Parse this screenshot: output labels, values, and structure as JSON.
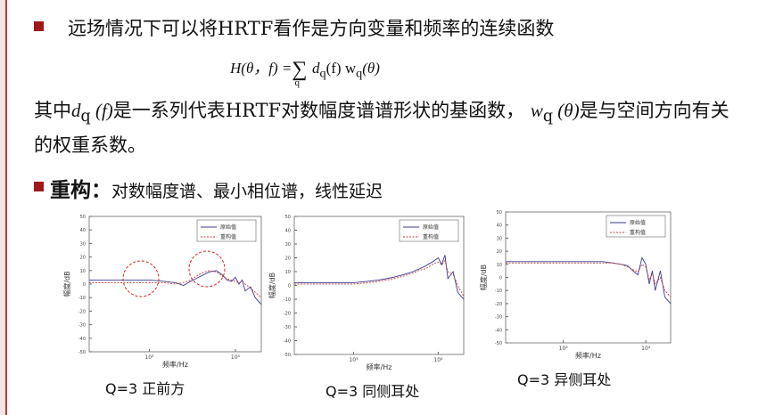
{
  "bullet1": "远场情况下可以将HRTF看作是方向变量和频率的连续函数",
  "formula": {
    "lhs": "H(θ，f) =",
    "sum": "∑",
    "sum_index": "q",
    "d": "d",
    "d_sub": "q",
    "d_arg": "(f)",
    "w": "w",
    "w_sub": "q",
    "w_arg": "(θ)"
  },
  "paragraph": {
    "p1": "其中",
    "d": "d",
    "d_sub": "q",
    "d_arg": " (f)",
    "p2": "是一系列代表HRTF对数幅度谱谱形状的基函数，",
    "w": "w",
    "w_sub": "q",
    "w_arg": " (θ)",
    "p3": "是与空间方向有关的权重系数。"
  },
  "heading": {
    "label": "重构：",
    "text": "对数幅度谱、最小相位谱，线性延迟"
  },
  "charts": [
    {
      "type": "line",
      "caption": "Q=3  正前方",
      "xlabel": "频率/Hz",
      "ylabel": "幅度/dB",
      "log_x": true,
      "x": [
        200,
        500,
        1000,
        1500,
        2000,
        2500,
        3000,
        4000,
        5000,
        6000,
        7000,
        8000,
        9000,
        10000,
        11000,
        12000,
        13000,
        15000,
        17000,
        20000
      ],
      "xlim": [
        200,
        20000
      ],
      "xticks": [
        {
          "value": 1000,
          "label": "10³"
        },
        {
          "value": 10000,
          "label": "10⁴"
        }
      ],
      "ylim": [
        -50,
        50
      ],
      "yticks": [
        -50,
        -40,
        -30,
        -20,
        -10,
        0,
        10,
        20,
        30,
        40,
        50
      ],
      "series": [
        {
          "name": "原始值",
          "color": "#3a3a8c",
          "values": [
            3,
            3,
            3,
            2,
            1,
            -1,
            2,
            6,
            9,
            10,
            7,
            3,
            2,
            5,
            0,
            3,
            -5,
            -2,
            -10,
            -15
          ]
        },
        {
          "name": "重构值",
          "color": "#c04040",
          "values": [
            1,
            1,
            1,
            1,
            0,
            1,
            3,
            8,
            10,
            9,
            6,
            4,
            3,
            2,
            1,
            2,
            0,
            -3,
            -6,
            -10
          ]
        }
      ]
    },
    {
      "type": "line",
      "caption": "Q=3 同侧耳处",
      "xlabel": "频率/Hz",
      "ylabel": "幅度/dB",
      "log_x": true,
      "x": [
        200,
        500,
        1000,
        1500,
        2000,
        2500,
        3000,
        4000,
        5000,
        6000,
        7000,
        8000,
        9000,
        10000,
        11000,
        12000,
        13000,
        15000,
        17000,
        20000
      ],
      "xlim": [
        200,
        20000
      ],
      "xticks": [
        {
          "value": 1000,
          "label": "10³"
        },
        {
          "value": 10000,
          "label": "10⁴"
        }
      ],
      "ylim": [
        -50,
        50
      ],
      "yticks": [
        -50,
        -40,
        -30,
        -20,
        -10,
        0,
        10,
        20,
        30,
        40,
        50
      ],
      "series": [
        {
          "name": "原始值",
          "color": "#3a3a8c",
          "values": [
            2,
            2,
            2,
            3,
            4,
            5,
            6,
            8,
            10,
            12,
            14,
            16,
            18,
            20,
            15,
            22,
            5,
            10,
            -5,
            -10
          ]
        },
        {
          "name": "重构值",
          "color": "#c04040",
          "values": [
            1,
            1,
            1,
            2,
            3,
            4,
            5,
            7,
            9,
            11,
            12,
            14,
            16,
            17,
            15,
            18,
            10,
            8,
            0,
            -8
          ]
        }
      ]
    },
    {
      "type": "line",
      "caption": "Q=3 异侧耳处",
      "xlabel": "频率/Hz",
      "ylabel": "幅度/dB",
      "log_x": true,
      "x": [
        200,
        500,
        1000,
        1500,
        2000,
        2500,
        3000,
        4000,
        5000,
        6000,
        7000,
        8000,
        9000,
        10000,
        11000,
        12000,
        13000,
        15000,
        17000,
        20000
      ],
      "xlim": [
        200,
        20000
      ],
      "xticks": [
        {
          "value": 1000,
          "label": "10³"
        },
        {
          "value": 10000,
          "label": "10⁴"
        }
      ],
      "ylim": [
        -50,
        50
      ],
      "yticks": [
        -50,
        -40,
        -30,
        -20,
        -10,
        0,
        10,
        20,
        30,
        40,
        50
      ],
      "series": [
        {
          "name": "原始值",
          "color": "#3a3a8c",
          "values": [
            12,
            12,
            12,
            12,
            12,
            12,
            12,
            11,
            10,
            9,
            5,
            2,
            15,
            10,
            -5,
            5,
            -10,
            5,
            -15,
            -20
          ]
        },
        {
          "name": "重构值",
          "color": "#c04040",
          "values": [
            11,
            11,
            11,
            11,
            11,
            11,
            11,
            11,
            10,
            8,
            6,
            4,
            10,
            8,
            -2,
            3,
            -5,
            0,
            -10,
            -15
          ]
        }
      ]
    }
  ]
}
